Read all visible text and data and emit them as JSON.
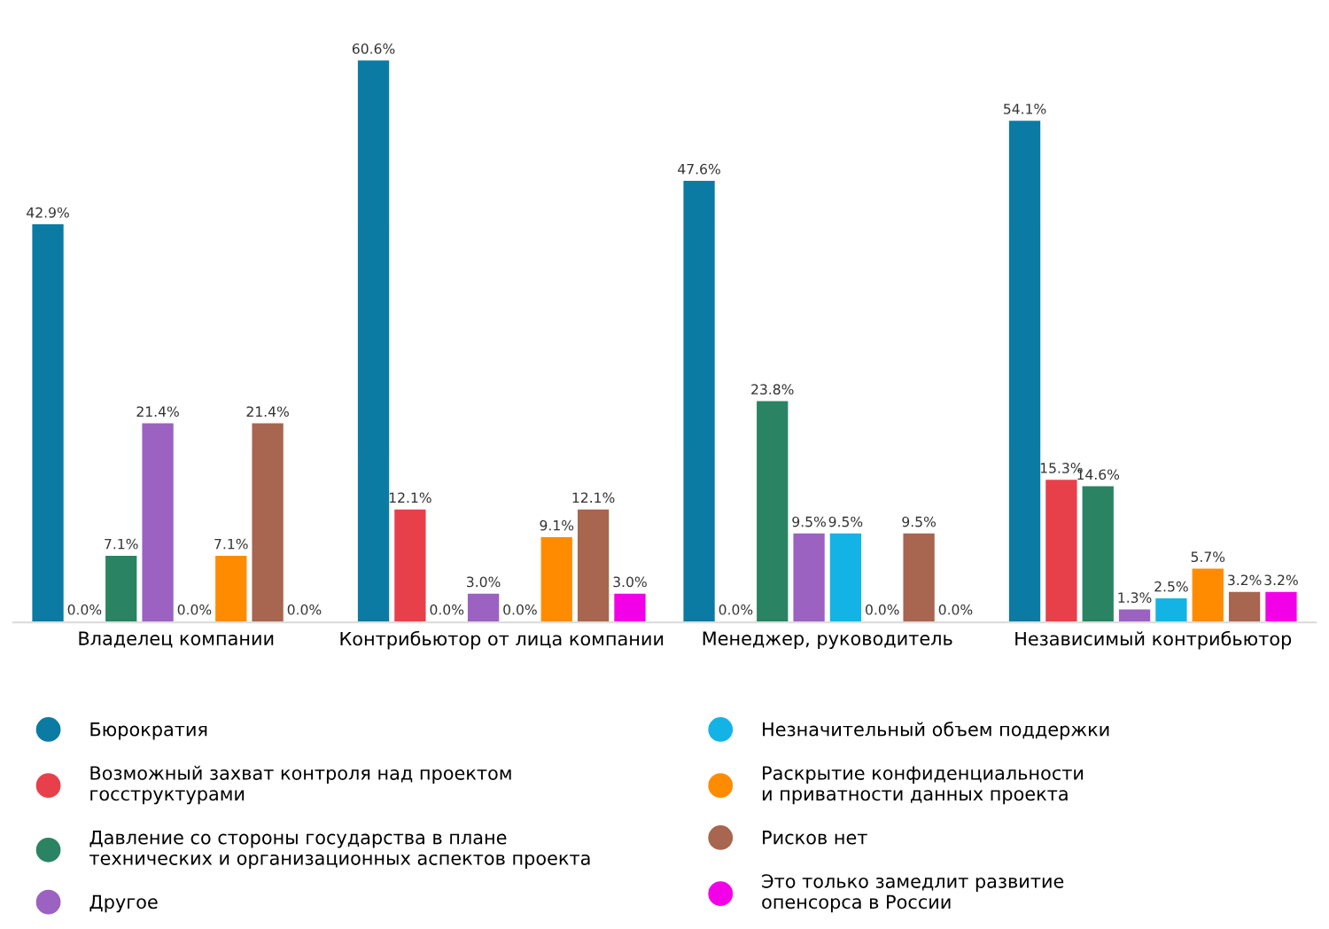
{
  "chart_data": {
    "type": "bar",
    "categories": [
      "Владелец компании",
      "Контрибьютор от лица компании",
      "Менеджер, руководитель",
      "Независимый контрибьютор"
    ],
    "series": [
      {
        "name": "Бюрократия",
        "color": "#0b7ba3",
        "values": [
          42.9,
          60.6,
          47.6,
          54.1
        ],
        "value_labels": [
          "42.9%",
          "60.6%",
          "47.6%",
          "54.1%"
        ]
      },
      {
        "name": "Возможный захват контроля над проектом\nгосструктурами",
        "color": "#e8404a",
        "values": [
          0.0,
          12.1,
          0.0,
          15.3
        ],
        "value_labels": [
          "0.0%",
          "12.1%",
          "0.0%",
          "15.3%"
        ]
      },
      {
        "name": "Давление со стороны государства в плане\nтехнических и организационных аспектов проекта",
        "color": "#2a8463",
        "values": [
          7.1,
          0.0,
          23.8,
          14.6
        ],
        "value_labels": [
          "7.1%",
          "0.0%",
          "23.8%",
          "14.6%"
        ]
      },
      {
        "name": "Другое",
        "color": "#9b62c1",
        "values": [
          21.4,
          3.0,
          9.5,
          1.3
        ],
        "value_labels": [
          "21.4%",
          "3.0%",
          "9.5%",
          "1.3%"
        ]
      },
      {
        "name": "Незначительный объем поддержки",
        "color": "#14b3e6",
        "values": [
          0.0,
          0.0,
          9.5,
          2.5
        ],
        "value_labels": [
          "0.0%",
          "0.0%",
          "9.5%",
          "2.5%"
        ]
      },
      {
        "name": "Раскрытие конфиденциальности\nи приватности данных проекта",
        "color": "#ff8c00",
        "values": [
          7.1,
          9.1,
          0.0,
          5.7
        ],
        "value_labels": [
          "7.1%",
          "9.1%",
          "0.0%",
          "5.7%"
        ]
      },
      {
        "name": "Рисков нет",
        "color": "#a8654f",
        "values": [
          21.4,
          12.1,
          9.5,
          3.2
        ],
        "value_labels": [
          "21.4%",
          "12.1%",
          "9.5%",
          "3.2%"
        ]
      },
      {
        "name": "Это только замедлит развитие\nопенсорса в России",
        "color": "#f200e8",
        "values": [
          0.0,
          3.0,
          0.0,
          3.2
        ],
        "value_labels": [
          "0.0%",
          "3.0%",
          "0.0%",
          "3.2%"
        ]
      }
    ],
    "relative": false,
    "legend": "bottom",
    "grid": false,
    "tick_labels": "x",
    "marker": "circle"
  }
}
